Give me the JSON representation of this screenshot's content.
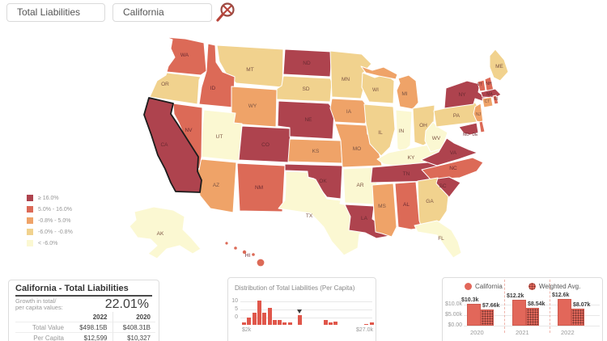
{
  "controls": {
    "measure": "Total Liabilities",
    "region": "California"
  },
  "map": {
    "selected": "CA",
    "legend": [
      {
        "label": "≥ 16.0%",
        "color": "#ae434e"
      },
      {
        "label": "5.0% - 16.0%",
        "color": "#dc6a57"
      },
      {
        "label": "-0.8% - 5.0%",
        "color": "#efa368"
      },
      {
        "label": "-6.0% - -0.8%",
        "color": "#f1d28e"
      },
      {
        "label": "< -6.0%",
        "color": "#fbf8d2"
      }
    ],
    "states": {
      "WA": 1,
      "OR": 3,
      "CA": 0,
      "NV": 1,
      "ID": 1,
      "MT": 3,
      "WY": 2,
      "UT": 4,
      "CO": 0,
      "AZ": 2,
      "NM": 1,
      "ND": 0,
      "SD": 3,
      "NE": 0,
      "KS": 2,
      "OK": 0,
      "TX": 4,
      "MN": 3,
      "IA": 2,
      "MO": 2,
      "AR": 4,
      "LA": 0,
      "WI": 3,
      "IL": 3,
      "MI": 2,
      "IN": 4,
      "OH": 3,
      "KY": 4,
      "TN": 0,
      "WV": 4,
      "VA": 0,
      "NC": 1,
      "SC": 0,
      "GA": 3,
      "AL": 1,
      "MS": 2,
      "FL": 4,
      "PA": 3,
      "NY": 0,
      "NJ": 2,
      "MD": 0,
      "DE": 1,
      "VT": 1,
      "NH": 1,
      "ME": 3,
      "MA": 0,
      "CT": 2,
      "RI": 1,
      "AK": 4,
      "HI": 1
    }
  },
  "details": {
    "title": "California - Total Liabilities",
    "growth_label_line1": "Growth in total/",
    "growth_label_line2": "per capita values:",
    "growth_value": "22.01%",
    "columns": [
      "2022",
      "2020"
    ],
    "rows": [
      {
        "label": "Total Value",
        "values": [
          "$498.15B",
          "$408.31B"
        ]
      },
      {
        "label": "Per Capita",
        "values": [
          "$12,599",
          "$10,327"
        ]
      }
    ]
  },
  "chart_data": [
    {
      "type": "bar",
      "title": "Distribution of Total Liabilities (Per Capita)",
      "x_min_label": "$2k",
      "x_max_label": "$27.0k",
      "y_ticks": [
        10,
        5,
        0
      ],
      "bin_start_k": 2,
      "bin_size_k": 1,
      "values": [
        1,
        3,
        5,
        10,
        5,
        7,
        2,
        2,
        1,
        1,
        0,
        4,
        0,
        0,
        0,
        0,
        2,
        1,
        1.5,
        0,
        0,
        0,
        0,
        0,
        0.5,
        1
      ],
      "marker_bin": 11,
      "bar_color": "#e0574b"
    },
    {
      "type": "bar",
      "categories": [
        "2020",
        "2021",
        "2022"
      ],
      "series": [
        {
          "name": "California",
          "values_k": [
            10.3,
            12.2,
            12.6
          ],
          "labels": [
            "$10.3k",
            "$12.2k",
            "$12.6k"
          ]
        },
        {
          "name": "Weighted Avg.",
          "values_k": [
            7.66,
            8.54,
            8.07
          ],
          "labels": [
            "$7.66k",
            "$8.54k",
            "$8.07k"
          ]
        }
      ],
      "y_tick_labels": [
        "$10.0k",
        "$5.00k",
        "$0.00"
      ],
      "y_ticks_k": [
        10,
        5,
        0
      ],
      "ylim": [
        0,
        13
      ]
    }
  ]
}
